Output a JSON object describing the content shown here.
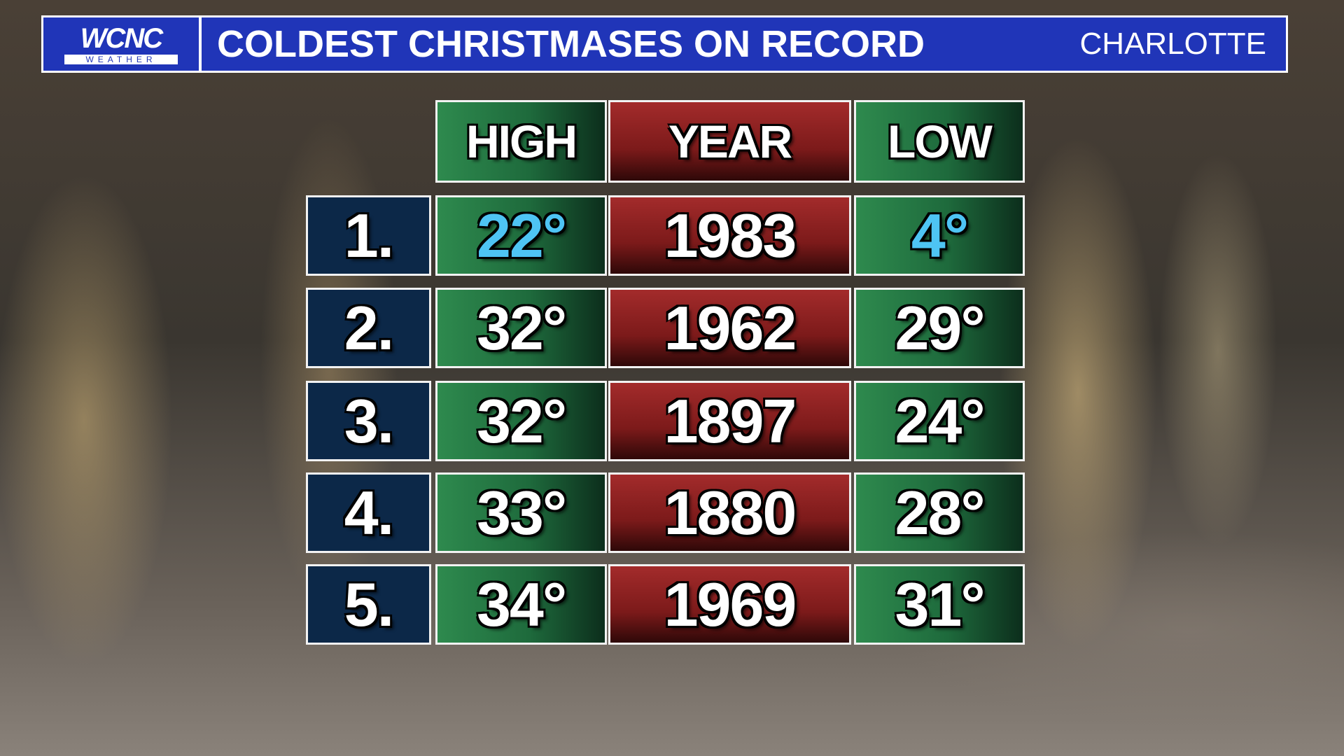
{
  "header": {
    "logo": "WCNC",
    "logo_sub": "WEATHER",
    "title": "COLDEST CHRISTMASES ON RECORD",
    "location": "CHARLOTTE"
  },
  "table": {
    "columns": [
      "HIGH",
      "YEAR",
      "LOW"
    ],
    "rows": [
      [
        "1.",
        "22°",
        "1983",
        "4°"
      ],
      [
        "2.",
        "32°",
        "1962",
        "29°"
      ],
      [
        "3.",
        "32°",
        "1897",
        "24°"
      ],
      [
        "4.",
        "33°",
        "1880",
        "28°"
      ],
      [
        "5.",
        "34°",
        "1969",
        "31°"
      ]
    ]
  }
}
